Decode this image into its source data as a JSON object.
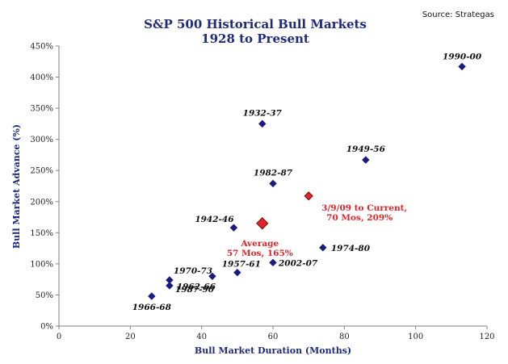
{
  "chart_data": {
    "type": "scatter",
    "title": "S&P 500 Historical Bull Markets",
    "subtitle": "1928 to Present",
    "source": "Source: Strategas",
    "xlabel": "Bull Market Duration (Months)",
    "ylabel": "Bull Market Advance (%)",
    "xlim": [
      0,
      120
    ],
    "ylim": [
      0,
      450
    ],
    "xticks": [
      0,
      20,
      40,
      60,
      80,
      100,
      120
    ],
    "xtick_labels": [
      "0",
      "20",
      "40",
      "60",
      "80",
      "100",
      "120"
    ],
    "yticks": [
      0,
      50,
      100,
      150,
      200,
      250,
      300,
      350,
      400,
      450
    ],
    "ytick_labels": [
      "0%",
      "50%",
      "100%",
      "150%",
      "200%",
      "250%",
      "300%",
      "350%",
      "400%",
      "450%"
    ],
    "grid": false,
    "colors": {
      "points": "#1a1a80",
      "highlight": "#e0242a",
      "title": "#1f2a7a"
    },
    "points": [
      {
        "label": "1990-00",
        "x": 113,
        "y": 417
      },
      {
        "label": "1932-37",
        "x": 57,
        "y": 325
      },
      {
        "label": "1949-56",
        "x": 86,
        "y": 267
      },
      {
        "label": "1982-87",
        "x": 60,
        "y": 229
      },
      {
        "label": "1942-46",
        "x": 49,
        "y": 158
      },
      {
        "label": "1974-80",
        "x": 74,
        "y": 126
      },
      {
        "label": "2002-07",
        "x": 60,
        "y": 102
      },
      {
        "label": "1957-61",
        "x": 50,
        "y": 86
      },
      {
        "label": "1962-66",
        "x": 43,
        "y": 80
      },
      {
        "label": "1970-73",
        "x": 31,
        "y": 74
      },
      {
        "label": "1987-90",
        "x": 31,
        "y": 65
      },
      {
        "label": "1966-68",
        "x": 26,
        "y": 48
      }
    ],
    "highlights": [
      {
        "name": "current",
        "x": 70,
        "y": 209,
        "label_lines": [
          "3/9/09 to Current,",
          "70 Mos, 209%"
        ]
      },
      {
        "name": "average",
        "x": 57,
        "y": 165,
        "label_lines": [
          "Average",
          "57 Mos, 165%"
        ]
      }
    ]
  }
}
